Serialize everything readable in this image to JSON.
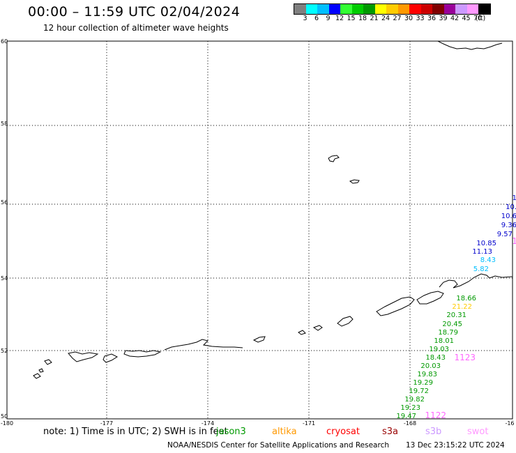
{
  "header": {
    "title": "00:00 – 11:59 UTC 02/04/2024",
    "subtitle": "12 hour collection of altimeter wave heights"
  },
  "legend": {
    "colors": [
      "#7f7f7f",
      "#00ffff",
      "#00bfff",
      "#0000ff",
      "#33ff33",
      "#00cc00",
      "#009900",
      "#ffff00",
      "#ffcc00",
      "#ff9900",
      "#ff0000",
      "#cc0000",
      "#800000",
      "#990099",
      "#cc99ff",
      "#ff99ff",
      "#000000"
    ],
    "labels": [
      "3",
      "6",
      "9",
      "12",
      "15",
      "18",
      "21",
      "24",
      "27",
      "30",
      "33",
      "36",
      "39",
      "42",
      "45",
      "70",
      "(ft)"
    ]
  },
  "axes": {
    "lat_labels": [
      "60",
      "58",
      "56",
      "54",
      "52",
      "50"
    ],
    "lon_labels": [
      "-180",
      "-177",
      "-174",
      "-171",
      "-168",
      "-16"
    ]
  },
  "observations": [
    {
      "text": "1",
      "color": "#0000cc"
    },
    {
      "text": "10.",
      "color": "#0000cc"
    },
    {
      "text": "10.6",
      "color": "#0000cc"
    },
    {
      "text": "9.36",
      "color": "#0000cc"
    },
    {
      "text": "9.57",
      "color": "#0000cc"
    },
    {
      "text": "1",
      "color": "#ff66ff"
    },
    {
      "text": "10.85",
      "color": "#0000cc"
    },
    {
      "text": "11.13",
      "color": "#0000cc"
    },
    {
      "text": "8.43",
      "color": "#00bfff"
    },
    {
      "text": "5.82",
      "color": "#00bfff"
    },
    {
      "text": "18.66",
      "color": "#009900"
    },
    {
      "text": "21.22",
      "color": "#ffcc00"
    },
    {
      "text": "20.31",
      "color": "#009900"
    },
    {
      "text": "20.45",
      "color": "#009900"
    },
    {
      "text": "18.79",
      "color": "#009900"
    },
    {
      "text": "18.01",
      "color": "#009900"
    },
    {
      "text": "19.03",
      "color": "#009900"
    },
    {
      "text": "18.43",
      "color": "#009900"
    },
    {
      "text": "1123",
      "color": "#ff66ff"
    },
    {
      "text": "20.03",
      "color": "#009900"
    },
    {
      "text": "19.83",
      "color": "#009900"
    },
    {
      "text": "19.29",
      "color": "#009900"
    },
    {
      "text": "19.72",
      "color": "#009900"
    },
    {
      "text": "19.82",
      "color": "#009900"
    },
    {
      "text": "19.23",
      "color": "#009900"
    },
    {
      "text": "19.47",
      "color": "#009900"
    },
    {
      "text": "1122",
      "color": "#ff66ff"
    }
  ],
  "note": "note: 1) Time is in UTC; 2) SWH is in feet",
  "satellites": [
    {
      "name": "jason3",
      "color": "#009900"
    },
    {
      "name": "altika",
      "color": "#ff9900"
    },
    {
      "name": "cryosat",
      "color": "#ff0000"
    },
    {
      "name": "s3a",
      "color": "#990000"
    },
    {
      "name": "s3b",
      "color": "#cc99ff"
    },
    {
      "name": "swot",
      "color": "#ff99ff"
    }
  ],
  "footer": {
    "credit": "NOAA/NESDIS Center for Satellite Applications and Research",
    "date": "13 Dec 23:15:22 UTC 2024"
  }
}
